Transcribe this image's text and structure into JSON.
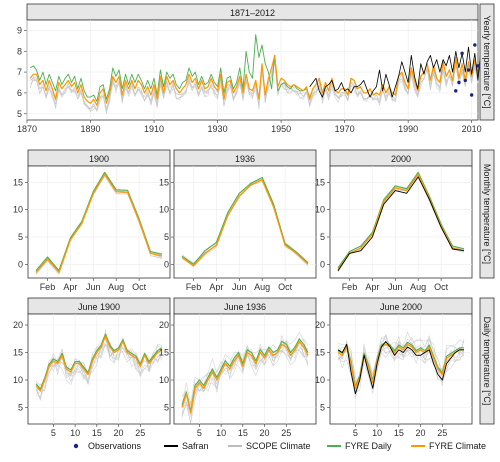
{
  "legend": [
    {
      "name": "Observations",
      "color": "#1a237e",
      "shape": "point"
    },
    {
      "name": "Safran",
      "color": "#000000",
      "shape": "line"
    },
    {
      "name": "SCOPE Climate",
      "color": "#bdbdbd",
      "shape": "line"
    },
    {
      "name": "FYRE Daily",
      "color": "#4caf50",
      "shape": "line"
    },
    {
      "name": "FYRE Climate",
      "color": "#ff9800",
      "shape": "line"
    }
  ],
  "colors": {
    "observations": "#1a237e",
    "safran": "#000000",
    "scope": "#c8c8c8",
    "fyre_daily": "#4caf50",
    "fyre_climate": "#ff9800"
  },
  "row_labels": [
    "Yearly temperature [°C]",
    "Monthly temperature [°C]",
    "Daily temperature [°C]"
  ],
  "chart_data": [
    {
      "type": "line",
      "title": "1871–2012",
      "ylabel": "Yearly temperature [°C]",
      "xlim": [
        1870,
        2012
      ],
      "ylim": [
        4.7,
        9.5
      ],
      "xticks": [
        1870,
        1890,
        1910,
        1930,
        1950,
        1970,
        1990,
        2010
      ],
      "yticks": [
        5,
        6,
        7,
        8,
        9
      ],
      "x_start": 1871,
      "series": [
        {
          "name": "FYRE Climate",
          "values": [
            6.7,
            6.9,
            6.9,
            6.4,
            6.6,
            6.1,
            6.6,
            6.2,
            5.7,
            6.5,
            6.2,
            6.4,
            6.6,
            6.3,
            6.5,
            6.0,
            6.4,
            5.8,
            5.6,
            5.5,
            5.7,
            5.4,
            6.0,
            6.2,
            5.5,
            6.0,
            6.8,
            6.5,
            6.8,
            5.9,
            6.6,
            6.2,
            6.6,
            6.2,
            6.6,
            6.4,
            6.0,
            6.3,
            5.9,
            6.4,
            5.7,
            6.8,
            6.0,
            6.8,
            6.4,
            6.6,
            6.2,
            6.0,
            6.2,
            6.4,
            6.9,
            6.5,
            6.7,
            6.2,
            6.6,
            6.2,
            6.3,
            6.7,
            6.3,
            6.1,
            6.9,
            5.7,
            6.5,
            6.6,
            6.0,
            6.3,
            6.8,
            6.0,
            6.9,
            6.2,
            6.1,
            6.6,
            5.7,
            7.4,
            5.9,
            6.7,
            7.2,
            7.8,
            6.3,
            6.7,
            6.6,
            6.4,
            6.3,
            6.4,
            6.3,
            6.2,
            6.1,
            6.3,
            5.7,
            6.2,
            6.4,
            6.7,
            6.0,
            6.5,
            6.1,
            6.7,
            6.1,
            6.0,
            6.2,
            6.2,
            5.9,
            6.7,
            6.6,
            6.2,
            6.3,
            6.0,
            6.0,
            6.2,
            5.9,
            6.0,
            5.9,
            6.4,
            6.0,
            6.3,
            6.0,
            5.9,
            6.8,
            7.0,
            6.5,
            6.2,
            7.2,
            6.6,
            6.1,
            6.8,
            7.0,
            7.4,
            6.6,
            7.3,
            6.7,
            6.5,
            7.5,
            6.8,
            7.1,
            6.6,
            7.7,
            6.7,
            7.4,
            6.6,
            7.5,
            6.8,
            7.6,
            6.8
          ]
        },
        {
          "name": "FYRE Daily",
          "values": [
            7.2,
            7.3,
            7.1,
            6.6,
            7.0,
            6.4,
            6.9,
            6.5,
            6.1,
            6.8,
            6.4,
            6.7,
            6.9,
            6.5,
            6.8,
            6.2,
            6.7,
            6.1,
            5.8,
            5.8,
            5.9,
            5.6,
            6.3,
            6.4,
            5.7,
            6.2,
            7.2,
            6.8,
            7.1,
            6.2,
            6.9,
            6.4,
            6.9,
            6.5,
            6.9,
            6.6,
            6.2,
            6.6,
            6.2,
            6.7,
            5.9,
            7.1,
            6.3,
            7.0,
            6.7,
            6.9,
            6.4,
            6.2,
            6.5,
            6.6,
            7.2,
            6.8,
            7.0,
            6.4,
            6.8,
            6.4,
            6.5,
            6.9,
            6.5,
            6.3,
            7.2,
            6.0,
            6.7,
            6.8,
            6.2,
            6.5,
            7.2,
            6.2,
            8.0,
            7.0,
            6.7,
            8.8,
            7.7,
            8.3,
            7.4,
            7.0,
            6.2,
            7.8,
            6.1,
            6.4,
            6.5,
            6.3,
            6.2,
            6.4,
            6.2,
            6.1,
            6.1,
            6.2,
            5.8,
            6.2,
            6.4,
            6.7,
            6.0,
            6.5,
            6.1,
            6.7,
            6.1,
            6.0,
            6.2,
            6.2,
            5.9,
            6.7,
            6.6,
            6.2,
            6.3,
            6.0,
            6.0,
            6.2,
            5.9,
            6.0,
            5.9,
            6.4,
            6.0,
            6.3,
            6.0,
            5.9,
            6.8,
            7.0,
            6.5,
            6.2,
            7.2,
            6.6,
            6.1,
            6.8,
            7.0,
            7.4,
            6.6,
            7.3,
            6.7,
            6.5,
            7.5,
            6.8,
            7.1,
            6.6,
            7.7,
            6.7,
            7.4,
            6.6,
            7.5,
            6.8,
            7.6,
            6.8
          ]
        },
        {
          "name": "Safran",
          "x_start": 1959,
          "values": [
            6.3,
            6.5,
            6.7,
            6.1,
            5.8,
            6.3,
            6.4,
            6.6,
            6.1,
            6.2,
            6.5,
            6.1,
            6.2,
            6.0,
            6.3,
            6.3,
            6.4,
            6.6,
            6.2,
            5.8,
            6.1,
            6.3,
            7.1,
            6.1,
            6.9,
            6.4,
            5.8,
            6.3,
            6.8,
            7.5,
            7.0,
            6.5,
            7.8,
            6.8,
            6.2,
            7.4,
            6.9,
            7.5,
            7.8,
            7.2,
            7.6,
            7.0,
            7.6,
            7.3,
            7.8,
            7.0,
            8.0,
            7.2,
            7.9,
            7.0,
            8.2,
            6.9,
            7.9,
            6.6,
            8.3
          ]
        },
        {
          "name": "Observations",
          "x_start": 2005,
          "values": [
            6.1,
            6.5,
            7.9,
            6.6,
            7.1,
            5.9,
            8.3,
            7.3
          ]
        }
      ]
    },
    {
      "type": "line",
      "title": "1900",
      "xticks": [
        "Feb",
        "Apr",
        "Jun",
        "Aug",
        "Oct"
      ],
      "ylim": [
        -2.5,
        18
      ],
      "yticks": [
        0,
        5,
        10,
        15
      ],
      "series": [
        {
          "name": "FYRE Climate",
          "values": [
            -1.5,
            1.0,
            -1.5,
            4.5,
            7.5,
            13.0,
            16.5,
            13.3,
            13.2,
            8.0,
            2.0,
            1.5
          ]
        }
      ]
    },
    {
      "type": "line",
      "title": "1936",
      "xticks": [
        "Feb",
        "Apr",
        "Jun",
        "Aug",
        "Oct"
      ],
      "ylim": [
        -2.5,
        18
      ],
      "yticks": [
        0,
        5,
        10,
        15
      ],
      "series": [
        {
          "name": "FYRE Climate",
          "values": [
            1.3,
            -0.3,
            2.0,
            3.5,
            9.0,
            12.5,
            14.5,
            15.5,
            10.5,
            3.5,
            2.0,
            0.0
          ]
        },
        {
          "name": "FYRE Daily",
          "values": [
            1.5,
            0.0,
            2.5,
            4.0,
            9.5,
            13.0,
            14.8,
            15.9,
            11.0,
            3.8,
            2.2,
            0.3
          ]
        }
      ]
    },
    {
      "type": "line",
      "title": "2000",
      "xticks": [
        "Feb",
        "Apr",
        "Jun",
        "Aug",
        "Oct"
      ],
      "ylim": [
        -2.5,
        18
      ],
      "yticks": [
        0,
        5,
        10,
        15
      ],
      "series": [
        {
          "name": "FYRE Climate",
          "values": [
            -1.0,
            2.0,
            3.0,
            5.5,
            11.5,
            14.0,
            13.5,
            16.5,
            12.0,
            7.0,
            3.0,
            2.5
          ]
        },
        {
          "name": "Safran",
          "values": [
            -1.2,
            2.0,
            2.5,
            5.0,
            11.0,
            13.5,
            13.0,
            16.0,
            11.8,
            6.8,
            2.8,
            2.5
          ]
        }
      ]
    },
    {
      "type": "line",
      "title": "June 1900",
      "xticks": [
        5,
        10,
        15,
        20,
        25
      ],
      "ylim": [
        2,
        22
      ],
      "yticks": [
        5,
        10,
        15,
        20
      ],
      "series": [
        {
          "name": "FYRE Climate",
          "values": [
            9.0,
            8.0,
            10.0,
            12.5,
            13.5,
            13.0,
            14.5,
            12.0,
            11.5,
            13.0,
            13.0,
            12.0,
            11.0,
            13.5,
            15.0,
            16.0,
            18.0,
            16.0,
            15.0,
            15.5,
            17.0,
            15.0,
            14.5,
            14.0,
            12.5,
            14.5,
            13.0,
            14.0,
            15.0,
            15.5
          ]
        }
      ]
    },
    {
      "type": "line",
      "title": "June 1936",
      "xticks": [
        5,
        10,
        15,
        20,
        25
      ],
      "ylim": [
        2,
        22
      ],
      "yticks": [
        5,
        10,
        15,
        20
      ],
      "series": [
        {
          "name": "FYRE Climate",
          "values": [
            5.0,
            7.5,
            4.0,
            8.5,
            9.5,
            8.5,
            10.0,
            11.5,
            10.0,
            11.5,
            13.0,
            12.0,
            13.5,
            14.5,
            12.5,
            15.0,
            14.5,
            13.0,
            15.0,
            14.0,
            15.5,
            14.5,
            15.0,
            16.5,
            16.0,
            14.5,
            15.5,
            17.0,
            16.0,
            14.5
          ]
        },
        {
          "name": "FYRE Daily",
          "values": [
            5.5,
            7.8,
            4.3,
            9.0,
            10.0,
            9.0,
            10.5,
            12.0,
            10.5,
            12.0,
            13.5,
            12.5,
            14.0,
            15.0,
            13.0,
            15.5,
            15.0,
            13.5,
            15.5,
            14.5,
            16.0,
            15.0,
            15.5,
            17.0,
            16.5,
            15.0,
            16.0,
            17.5,
            16.5,
            15.0
          ]
        }
      ]
    },
    {
      "type": "line",
      "title": "June 2000",
      "xticks": [
        5,
        10,
        15,
        20,
        25
      ],
      "ylim": [
        2,
        22
      ],
      "yticks": [
        5,
        10,
        15,
        20
      ],
      "series": [
        {
          "name": "FYRE Climate",
          "values": [
            15.0,
            14.5,
            16.0,
            13.0,
            8.5,
            10.5,
            14.5,
            12.5,
            9.5,
            13.5,
            16.0,
            16.5,
            16.0,
            15.0,
            16.0,
            15.5,
            16.5,
            16.0,
            15.0,
            15.5,
            15.0,
            16.0,
            14.0,
            12.0,
            11.0,
            14.0,
            14.5,
            15.0,
            15.5,
            15.5
          ]
        },
        {
          "name": "Safran",
          "values": [
            15.5,
            15.0,
            16.5,
            11.5,
            7.5,
            10.0,
            14.5,
            11.5,
            8.5,
            13.0,
            16.0,
            17.0,
            16.0,
            14.5,
            15.5,
            15.0,
            16.0,
            15.5,
            14.5,
            14.5,
            15.0,
            15.5,
            13.0,
            11.0,
            10.0,
            13.0,
            14.0,
            15.0,
            15.5,
            15.5
          ]
        }
      ]
    }
  ]
}
